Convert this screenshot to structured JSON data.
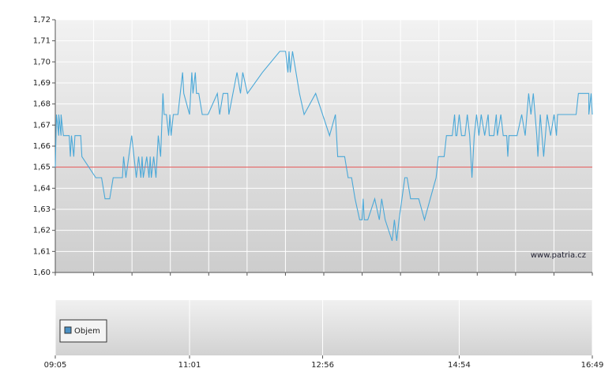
{
  "chart_data": {
    "type": "line",
    "color": "#4aa8d8",
    "reference_value": 1.65,
    "reference_color": "#e05050",
    "watermark": "www.patria.cz",
    "grid": true,
    "ylim": [
      1.6,
      1.72
    ],
    "yticks": [
      {
        "value": 1.6,
        "label": "1,60"
      },
      {
        "value": 1.61,
        "label": "1,61"
      },
      {
        "value": 1.62,
        "label": "1,62"
      },
      {
        "value": 1.63,
        "label": "1,63"
      },
      {
        "value": 1.64,
        "label": "1,64"
      },
      {
        "value": 1.65,
        "label": "1,65"
      },
      {
        "value": 1.66,
        "label": "1,66"
      },
      {
        "value": 1.67,
        "label": "1,67"
      },
      {
        "value": 1.68,
        "label": "1,68"
      },
      {
        "value": 1.69,
        "label": "1,69"
      },
      {
        "value": 1.7,
        "label": "1,70"
      },
      {
        "value": 1.71,
        "label": "1,71"
      },
      {
        "value": 1.72,
        "label": "1,72"
      }
    ],
    "xlim": [
      "09:05",
      "16:49"
    ],
    "xticks": [
      "09:05",
      "11:01",
      "12:56",
      "14:54",
      "16:49"
    ],
    "x": [
      "09:05",
      "09:06",
      "09:08",
      "09:08",
      "09:10",
      "09:10",
      "09:12",
      "09:17",
      "09:18",
      "09:19",
      "09:21",
      "09:22",
      "09:27",
      "09:28",
      "09:40",
      "09:45",
      "09:48",
      "09:52",
      "09:55",
      "10:03",
      "10:04",
      "10:06",
      "10:11",
      "10:15",
      "10:17",
      "10:19",
      "10:20",
      "10:21",
      "10:24",
      "10:26",
      "10:27",
      "10:28",
      "10:30",
      "10:32",
      "10:34",
      "10:36",
      "10:38",
      "10:39",
      "10:41",
      "10:43",
      "10:44",
      "10:45",
      "10:47",
      "10:51",
      "10:55",
      "10:56",
      "11:01",
      "11:03",
      "11:04",
      "11:06",
      "11:07",
      "11:09",
      "11:12",
      "11:17",
      "11:25",
      "11:27",
      "11:30",
      "11:34",
      "11:35",
      "11:42",
      "11:45",
      "11:47",
      "11:51",
      "12:04",
      "12:19",
      "12:24",
      "12:26",
      "12:27",
      "12:28",
      "12:30",
      "12:36",
      "12:40",
      "12:50",
      "13:02",
      "13:07",
      "13:09",
      "13:15",
      "13:18",
      "13:21",
      "13:24",
      "13:28",
      "13:30",
      "13:31",
      "13:32",
      "13:35",
      "13:41",
      "13:45",
      "13:47",
      "13:50",
      "13:56",
      "13:58",
      "14:00",
      "14:02",
      "14:07",
      "14:09",
      "14:12",
      "14:19",
      "14:24",
      "14:29",
      "14:34",
      "14:36",
      "14:41",
      "14:43",
      "14:48",
      "14:50",
      "14:51",
      "14:52",
      "14:54",
      "14:56",
      "14:59",
      "15:01",
      "15:03",
      "15:05",
      "15:07",
      "15:09",
      "15:11",
      "15:13",
      "15:16",
      "15:19",
      "15:20",
      "15:24",
      "15:26",
      "15:27",
      "15:30",
      "15:32",
      "15:35",
      "15:36",
      "15:37",
      "15:44",
      "15:48",
      "15:51",
      "15:54",
      "15:56",
      "15:58",
      "16:01",
      "16:02",
      "16:04",
      "16:07",
      "16:10",
      "16:13",
      "16:16",
      "16:18",
      "16:19",
      "16:35",
      "16:37",
      "16:46",
      "16:46",
      "16:48",
      "16:49"
    ],
    "values": [
      1.65,
      1.675,
      1.665,
      1.675,
      1.665,
      1.675,
      1.665,
      1.665,
      1.655,
      1.665,
      1.655,
      1.665,
      1.665,
      1.655,
      1.645,
      1.645,
      1.635,
      1.635,
      1.645,
      1.645,
      1.655,
      1.645,
      1.665,
      1.645,
      1.655,
      1.645,
      1.655,
      1.645,
      1.655,
      1.645,
      1.655,
      1.645,
      1.655,
      1.645,
      1.665,
      1.655,
      1.685,
      1.675,
      1.675,
      1.665,
      1.675,
      1.665,
      1.675,
      1.675,
      1.695,
      1.685,
      1.675,
      1.695,
      1.685,
      1.695,
      1.685,
      1.685,
      1.675,
      1.675,
      1.685,
      1.675,
      1.685,
      1.685,
      1.675,
      1.695,
      1.685,
      1.695,
      1.685,
      1.695,
      1.705,
      1.705,
      1.695,
      1.705,
      1.695,
      1.705,
      1.685,
      1.675,
      1.685,
      1.665,
      1.675,
      1.655,
      1.655,
      1.645,
      1.645,
      1.635,
      1.625,
      1.625,
      1.635,
      1.625,
      1.625,
      1.635,
      1.625,
      1.635,
      1.625,
      1.615,
      1.625,
      1.615,
      1.625,
      1.645,
      1.645,
      1.635,
      1.635,
      1.625,
      1.635,
      1.645,
      1.655,
      1.655,
      1.665,
      1.665,
      1.675,
      1.665,
      1.665,
      1.675,
      1.665,
      1.665,
      1.675,
      1.665,
      1.645,
      1.665,
      1.675,
      1.665,
      1.675,
      1.665,
      1.675,
      1.665,
      1.665,
      1.675,
      1.665,
      1.675,
      1.665,
      1.665,
      1.655,
      1.665,
      1.665,
      1.675,
      1.665,
      1.685,
      1.675,
      1.685,
      1.665,
      1.655,
      1.675,
      1.655,
      1.675,
      1.665,
      1.675,
      1.665,
      1.675,
      1.675,
      1.685,
      1.685,
      1.675,
      1.685,
      1.675
    ],
    "volume": {
      "name": "Objem",
      "color": "#4a90c4"
    }
  }
}
